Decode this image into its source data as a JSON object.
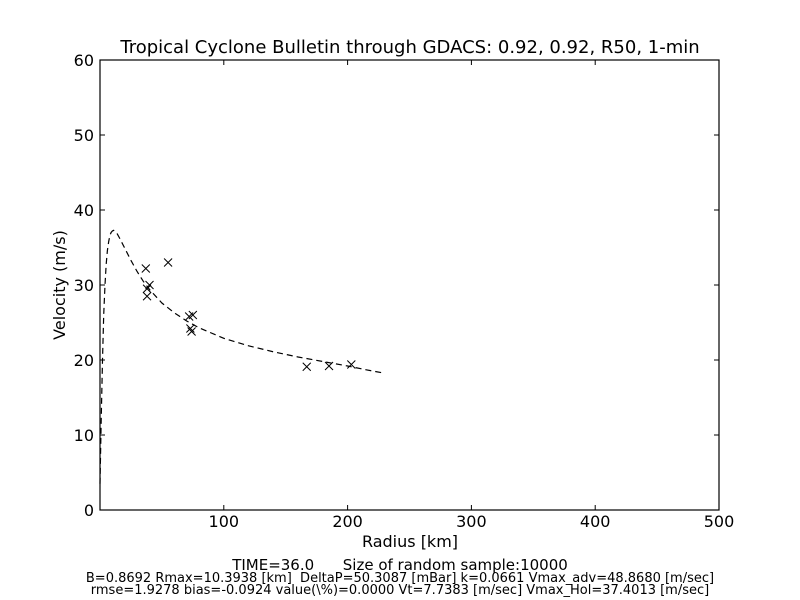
{
  "chart_data": {
    "type": "scatter",
    "title": "Tropical Cyclone Bulletin through GDACS: 0.92, 0.92, R50, 1-min",
    "xlabel": "Radius [km]",
    "ylabel": "Velocity (m/s)",
    "xlim": [
      0,
      500
    ],
    "ylim": [
      0,
      60
    ],
    "xticks": [
      100,
      200,
      300,
      400,
      500
    ],
    "yticks": [
      0,
      10,
      20,
      30,
      40,
      50,
      60
    ],
    "grid": false,
    "series": [
      {
        "kind": "markers",
        "marker": "x",
        "points": [
          [
            37,
            32.2
          ],
          [
            38,
            28.5
          ],
          [
            38,
            29.5
          ],
          [
            40,
            30.0
          ],
          [
            55,
            33.0
          ],
          [
            72,
            25.8
          ],
          [
            75,
            26.0
          ],
          [
            73,
            24.2
          ],
          [
            74,
            23.8
          ],
          [
            167,
            19.1
          ],
          [
            185,
            19.2
          ],
          [
            203,
            19.4
          ]
        ]
      },
      {
        "kind": "line",
        "style": "dashed",
        "points": [
          [
            0,
            3.5
          ],
          [
            1,
            12
          ],
          [
            2,
            20
          ],
          [
            3,
            26
          ],
          [
            4,
            30
          ],
          [
            5,
            32.8
          ],
          [
            6,
            34.6
          ],
          [
            7,
            35.8
          ],
          [
            8,
            36.6
          ],
          [
            9,
            37.0
          ],
          [
            10,
            37.2
          ],
          [
            11,
            37.3
          ],
          [
            12,
            37.2
          ],
          [
            14,
            36.8
          ],
          [
            16,
            36.2
          ],
          [
            20,
            34.9
          ],
          [
            25,
            33.3
          ],
          [
            30,
            31.8
          ],
          [
            35,
            30.5
          ],
          [
            40,
            29.4
          ],
          [
            50,
            27.6
          ],
          [
            60,
            26.3
          ],
          [
            70,
            25.2
          ],
          [
            80,
            24.3
          ],
          [
            100,
            22.9
          ],
          [
            120,
            21.9
          ],
          [
            140,
            21.1
          ],
          [
            160,
            20.4
          ],
          [
            180,
            19.8
          ],
          [
            200,
            19.2
          ],
          [
            215,
            18.7
          ],
          [
            228,
            18.3
          ]
        ]
      }
    ]
  },
  "footer": {
    "line1": "TIME=36.0      Size of random sample:10000",
    "line2": "B=0.8692 Rmax=10.3938 [km]  DeltaP=50.3087 [mBar] k=0.0661 Vmax_adv=48.8680 [m/sec]",
    "line3": "rmse=1.9278 bias=-0.0924 value(\\%)=0.0000 Vt=7.7383 [m/sec] Vmax_Hol=37.4013 [m/sec]"
  }
}
